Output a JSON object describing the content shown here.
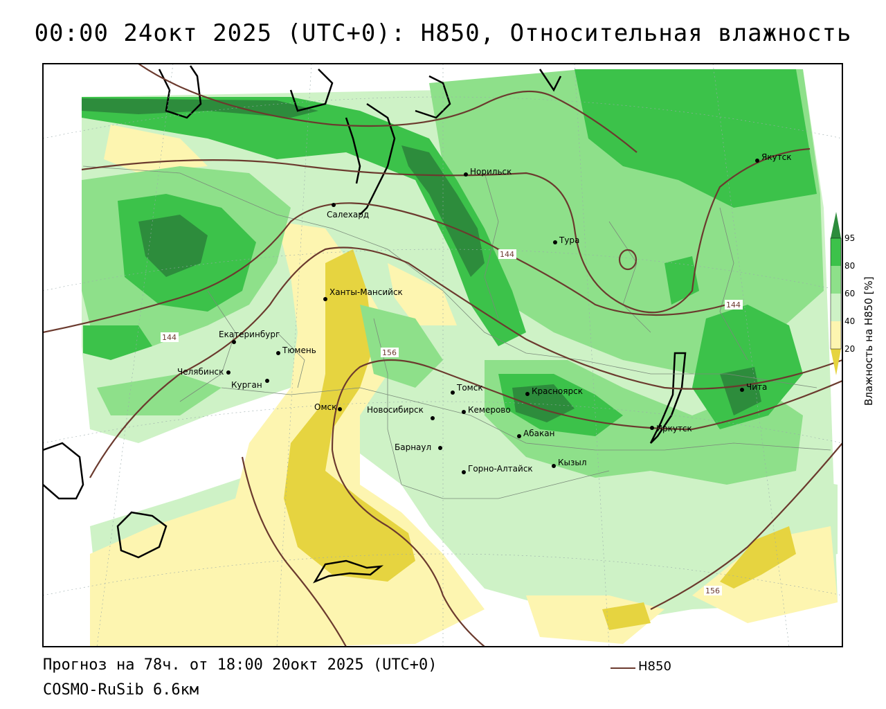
{
  "title": "00:00 24окт 2025 (UTC+0): H850, Относительная влажность",
  "footer": {
    "forecast": "Прогноз на 78ч. от 18:00 20окт 2025 (UTC+0)",
    "model": "COSMO-RuSib 6.6км"
  },
  "legend": {
    "line_label": "H850",
    "line_color": "#6b3a2e"
  },
  "colorbar": {
    "title": "Влажность на H850 [%]",
    "ticks": [
      "95",
      "80",
      "60",
      "40",
      "20"
    ],
    "colors": {
      "c95": "#2d8c3c",
      "c80": "#3cc24a",
      "c60": "#8ee08a",
      "c40": "#cef2c6",
      "c20": "#fdf5b0",
      "c0": "#e6d440"
    }
  },
  "contour_labels": [
    "144",
    "144",
    "144",
    "156",
    "156"
  ],
  "cities": [
    "Якутск",
    "Норильск",
    "Салехард",
    "Тура",
    "Ханты-Мансийск",
    "Екатеринбург",
    "Тюмень",
    "Челябинск",
    "Курган",
    "Омск",
    "Новосибирск",
    "Томск",
    "Кемерово",
    "Красноярск",
    "Абакан",
    "Барнаул",
    "Горно-Алтайск",
    "Кызыл",
    "Иркутск",
    "Чита"
  ]
}
